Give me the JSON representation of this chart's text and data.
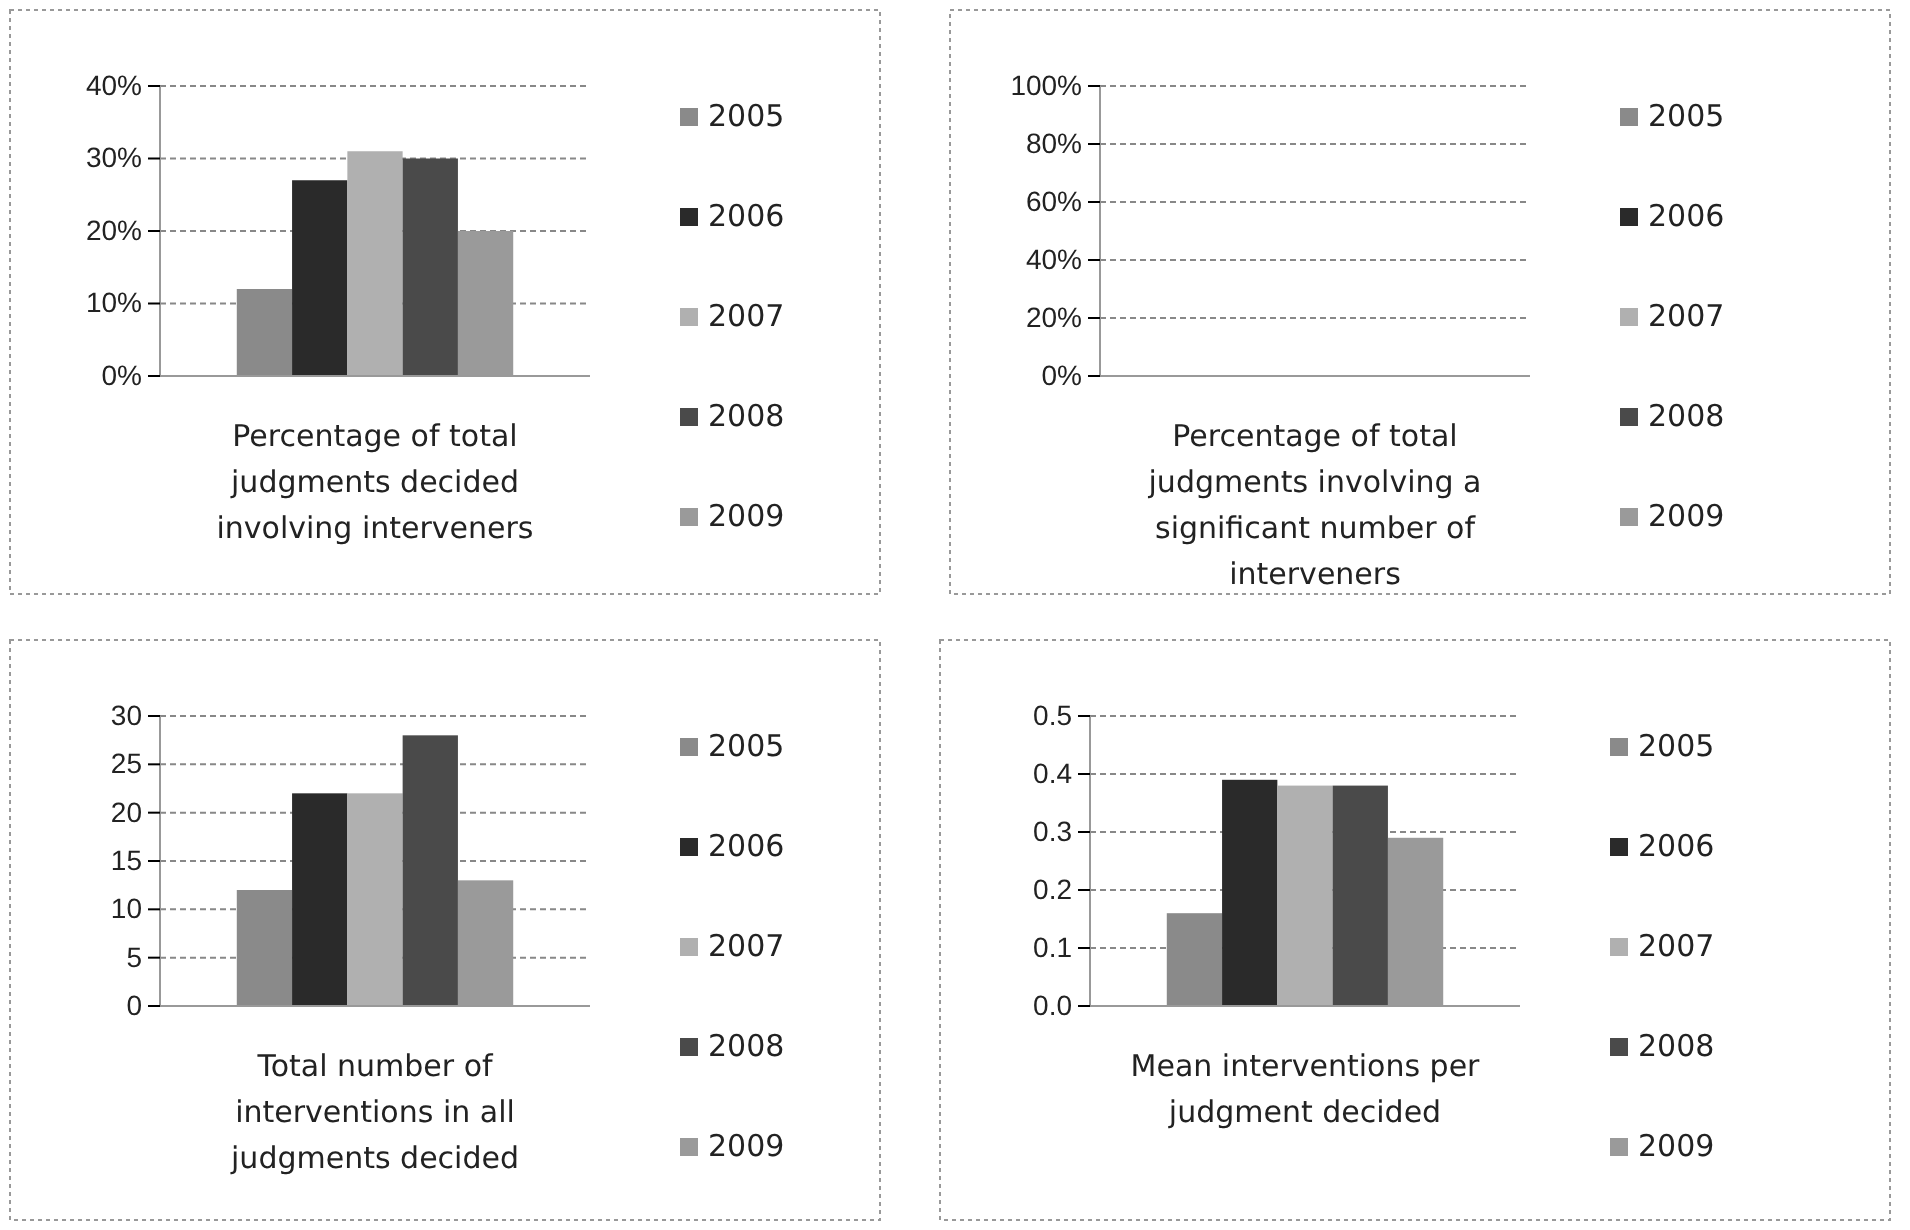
{
  "chart_data": [
    {
      "type": "bar",
      "categories": [
        null
      ],
      "xlabel": "Percentage of total judgments decided involving interveners",
      "series": [
        {
          "name": "2005",
          "color": "#8a8a8a",
          "values": [
            0.12
          ]
        },
        {
          "name": "2006",
          "color": "#2a2a2a",
          "values": [
            0.27
          ]
        },
        {
          "name": "2007",
          "color": "#b0b0b0",
          "values": [
            0.31
          ]
        },
        {
          "name": "2008",
          "color": "#4a4a4a",
          "values": [
            0.3
          ]
        },
        {
          "name": "2009",
          "color": "#9a9a9a",
          "values": [
            0.2
          ]
        }
      ],
      "ylim": [
        0,
        0.4
      ],
      "yticks": [
        {
          "value": 0,
          "label": "0%"
        },
        {
          "value": 0.1,
          "label": "10%"
        },
        {
          "value": 0.2,
          "label": "20%"
        },
        {
          "value": 0.3,
          "label": "30%"
        },
        {
          "value": 0.4,
          "label": "40%"
        }
      ],
      "grid": "y",
      "legend": "right"
    },
    {
      "type": "bar",
      "categories": [
        null
      ],
      "xlabel": "Percentage of total judgments involving a significant number of interveners",
      "series": [
        {
          "name": "2005",
          "color": "#8a8a8a",
          "values": [
            0
          ]
        },
        {
          "name": "2006",
          "color": "#2a2a2a",
          "values": [
            0
          ]
        },
        {
          "name": "2007",
          "color": "#b0b0b0",
          "values": [
            0
          ]
        },
        {
          "name": "2008",
          "color": "#4a4a4a",
          "values": [
            0
          ]
        },
        {
          "name": "2009",
          "color": "#9a9a9a",
          "values": [
            0
          ]
        }
      ],
      "ylim": [
        0,
        1
      ],
      "yticks": [
        {
          "value": 0,
          "label": "0%"
        },
        {
          "value": 0.2,
          "label": "20%"
        },
        {
          "value": 0.4,
          "label": "40%"
        },
        {
          "value": 0.6,
          "label": "60%"
        },
        {
          "value": 0.8,
          "label": "80%"
        },
        {
          "value": 1,
          "label": "100%"
        }
      ],
      "grid": "y",
      "legend": "right"
    },
    {
      "type": "bar",
      "categories": [
        null
      ],
      "xlabel": "Total number of interventions in all judgments decided",
      "series": [
        {
          "name": "2005",
          "color": "#8a8a8a",
          "values": [
            12
          ]
        },
        {
          "name": "2006",
          "color": "#2a2a2a",
          "values": [
            22
          ]
        },
        {
          "name": "2007",
          "color": "#b0b0b0",
          "values": [
            22
          ]
        },
        {
          "name": "2008",
          "color": "#4a4a4a",
          "values": [
            28
          ]
        },
        {
          "name": "2009",
          "color": "#9a9a9a",
          "values": [
            13
          ]
        }
      ],
      "ylim": [
        0,
        30
      ],
      "yticks": [
        0,
        5,
        10,
        15,
        20,
        25,
        30
      ],
      "grid": "y",
      "legend": "right"
    },
    {
      "type": "bar",
      "categories": [
        null
      ],
      "xlabel": "Mean interventions per judgment decided",
      "series": [
        {
          "name": "2005",
          "color": "#8a8a8a",
          "values": [
            0.16
          ]
        },
        {
          "name": "2006",
          "color": "#2a2a2a",
          "values": [
            0.39
          ]
        },
        {
          "name": "2007",
          "color": "#b0b0b0",
          "values": [
            0.38
          ]
        },
        {
          "name": "2008",
          "color": "#4a4a4a",
          "values": [
            0.38
          ]
        },
        {
          "name": "2009",
          "color": "#9a9a9a",
          "values": [
            0.29
          ]
        }
      ],
      "ylim": [
        0,
        0.5
      ],
      "yticks": [
        {
          "value": 0,
          "label": "0.0"
        },
        0.1,
        0.2,
        0.3,
        0.4,
        0.5
      ],
      "grid": "y",
      "legend": "right"
    }
  ]
}
